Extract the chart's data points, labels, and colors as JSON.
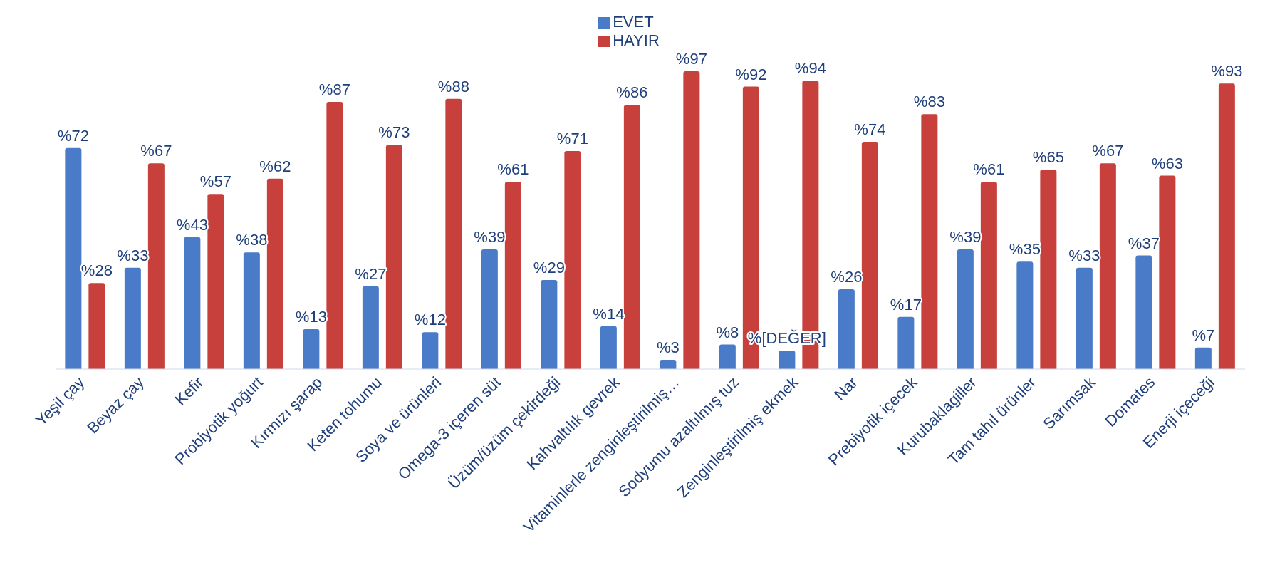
{
  "chart_data": {
    "type": "bar",
    "categories": [
      "Yeşil çay",
      "Beyaz çay",
      "Kefir",
      "Probiyotik yoğurt",
      "Kırmızı şarap",
      "Keten tohumu",
      "Soya ve ürünleri",
      "Omega-3 içeren süt",
      "Üzüm/üzüm çekirdeği",
      "Kahvaltılık gevrek",
      "Vitaminlerle zenginleştirilmiş…",
      "Sodyumu azaltılmış tuz",
      "Zenginleştirilmiş ekmek",
      "Nar",
      "Prebiyotik içecek",
      "Kurubaklagiller",
      "Tam tahıl ürünler",
      "Sarımsak",
      "Domates",
      "Enerji içeceği"
    ],
    "series": [
      {
        "name": "EVET",
        "color": "#4a7bc8",
        "values": [
          72,
          33,
          43,
          38,
          13,
          27,
          12,
          39,
          29,
          14,
          3,
          8,
          6,
          26,
          17,
          39,
          35,
          33,
          37,
          7
        ],
        "value_labels": [
          "%72",
          "%33",
          "%43",
          "%38",
          "%13",
          "%27",
          "%12",
          "%39",
          "%29",
          "%14",
          "%3",
          "%8",
          "%[DEĞER]",
          "%26",
          "%17",
          "%39",
          "%35",
          "%33",
          "%37",
          "%7"
        ]
      },
      {
        "name": "HAYIR",
        "color": "#c8403c",
        "values": [
          28,
          67,
          57,
          62,
          87,
          73,
          88,
          61,
          71,
          86,
          97,
          92,
          94,
          74,
          83,
          61,
          65,
          67,
          63,
          93
        ],
        "value_labels": [
          "%28",
          "%67",
          "%57",
          "%62",
          "%87",
          "%73",
          "%88",
          "%61",
          "%71",
          "%86",
          "%97",
          "%92",
          "%94",
          "%74",
          "%83",
          "%61",
          "%65",
          "%67",
          "%63",
          "%93"
        ]
      }
    ],
    "legend": "top",
    "grid": false
  }
}
